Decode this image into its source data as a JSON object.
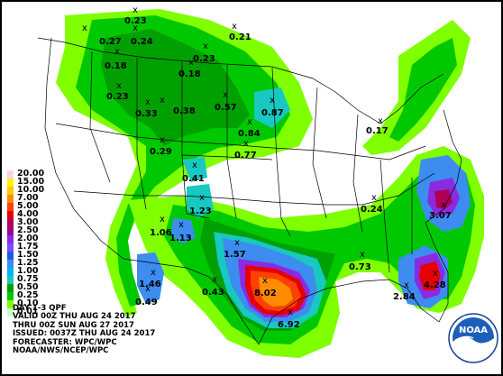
{
  "legend": {
    "items": [
      {
        "label": "20.00",
        "color": "#ffd1e8"
      },
      {
        "label": "15.00",
        "color": "#fff200"
      },
      {
        "label": "10.00",
        "color": "#ffc800"
      },
      {
        "label": "7.00",
        "color": "#ff8c00"
      },
      {
        "label": "5.00",
        "color": "#ff4000"
      },
      {
        "label": "4.00",
        "color": "#e60000"
      },
      {
        "label": "3.00",
        "color": "#b00058"
      },
      {
        "label": "2.50",
        "color": "#9c0096"
      },
      {
        "label": "2.00",
        "color": "#8a2be2"
      },
      {
        "label": "1.75",
        "color": "#7c4dff"
      },
      {
        "label": "1.50",
        "color": "#1d59e6"
      },
      {
        "label": "1.25",
        "color": "#3d8cf0"
      },
      {
        "label": "1.00",
        "color": "#00b6f0"
      },
      {
        "label": "0.75",
        "color": "#19c8c0"
      },
      {
        "label": "0.50",
        "color": "#00a000"
      },
      {
        "label": "0.25",
        "color": "#00c800"
      },
      {
        "label": "0.10",
        "color": "#7fff00"
      },
      {
        "label": "0.01",
        "color": "#c8ffc8"
      }
    ]
  },
  "info": {
    "line1": "DAY 1-3 QPF",
    "line2": "VALID 00Z THU AUG 24 2017",
    "line3": "THRU 00Z SUN AUG 27 2017",
    "line4": "ISSUED: 0037Z THU AUG 24 2017",
    "line5": "FORECASTER: WPC/WPC",
    "line6": "NOAA/NWS/NCEP/WPC"
  },
  "logo": {
    "text": "NOAA"
  },
  "marker_symbol": "x",
  "values": [
    {
      "label": "0.23"
    },
    {
      "label": "0.27"
    },
    {
      "label": "0.24"
    },
    {
      "label": "0.21"
    },
    {
      "label": "0.18"
    },
    {
      "label": "0.23"
    },
    {
      "label": "0.18"
    },
    {
      "label": "0.23"
    },
    {
      "label": "0.33"
    },
    {
      "label": "0.38"
    },
    {
      "label": "0.57"
    },
    {
      "label": "0.87"
    },
    {
      "label": "0.84"
    },
    {
      "label": "0.17"
    },
    {
      "label": "0.77"
    },
    {
      "label": "0.29"
    },
    {
      "label": "0.41"
    },
    {
      "label": "1.23"
    },
    {
      "label": "0.24"
    },
    {
      "label": "3.07"
    },
    {
      "label": "1.06"
    },
    {
      "label": "1.13"
    },
    {
      "label": "1.57"
    },
    {
      "label": "0.73"
    },
    {
      "label": "1.46"
    },
    {
      "label": "0.49"
    },
    {
      "label": "0.43"
    },
    {
      "label": "8.02"
    },
    {
      "label": "2.84"
    },
    {
      "label": "4.28"
    },
    {
      "label": "6.92"
    }
  ]
}
